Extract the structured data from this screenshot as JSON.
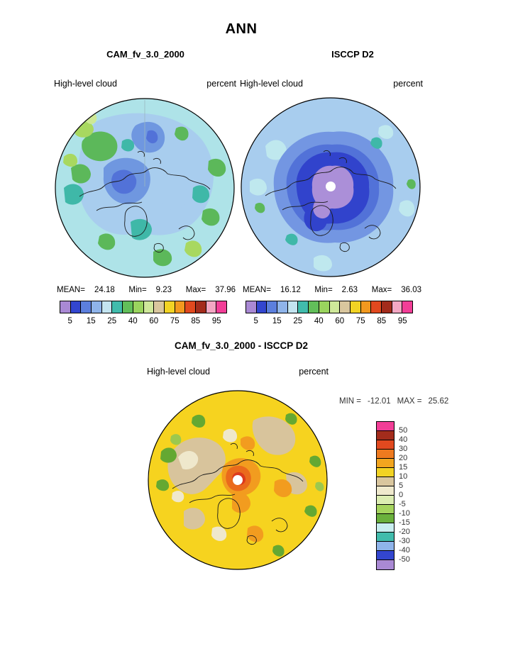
{
  "title": "ANN",
  "top": {
    "left_panel": {
      "title": "CAM_fv_3.0_2000",
      "variable": "High-level cloud",
      "units": "percent",
      "stats": {
        "mean_label": "MEAN=",
        "mean": "24.18",
        "min_label": "Min=",
        "min": "9.23",
        "max_label": "Max=",
        "max": "37.96"
      }
    },
    "right_panel": {
      "title": "ISCCP D2",
      "variable": "High-level cloud",
      "units": "percent",
      "stats": {
        "mean_label": "MEAN=",
        "mean": "16.12",
        "min_label": "Min=",
        "min": "2.63",
        "max_label": "Max=",
        "max": "36.03"
      }
    },
    "colorbar": {
      "ticks": [
        "5",
        "15",
        "25",
        "40",
        "60",
        "75",
        "85",
        "95"
      ],
      "colors": [
        "#a989d4",
        "#3346cf",
        "#5c7fdd",
        "#8fb4ea",
        "#c3e4f0",
        "#41bcac",
        "#62bf5a",
        "#9ad45e",
        "#cfe89a",
        "#d9c69e",
        "#f2d324",
        "#f2991f",
        "#e1491f",
        "#a32c1c",
        "#f3a7c3",
        "#f23e97"
      ]
    }
  },
  "bottom": {
    "title": "CAM_fv_3.0_2000 - ISCCP D2",
    "variable": "High-level cloud",
    "units": "percent",
    "min_label": "MIN =",
    "min": "-12.01",
    "max_label": "MAX =",
    "max": "25.62",
    "colorbar": {
      "labels": [
        "50",
        "40",
        "30",
        "20",
        "15",
        "10",
        "5",
        "0",
        "-5",
        "-10",
        "-15",
        "-20",
        "-30",
        "-40",
        "-50"
      ],
      "colors": [
        "#f23e97",
        "#a32c1c",
        "#e1491f",
        "#ee7a1f",
        "#f2a51f",
        "#f2d324",
        "#d9c69e",
        "#efe9cd",
        "#dcedb2",
        "#a5d45e",
        "#6ab03c",
        "#c9eef0",
        "#41bcac",
        "#8fb4ea",
        "#3346cf",
        "#a989d4"
      ]
    }
  },
  "chart_data": [
    {
      "type": "heatmap",
      "subtype": "polar-stereographic-contour-map",
      "season": "ANN",
      "title": "CAM_fv_3.0_2000",
      "variable": "High-level cloud",
      "units": "percent",
      "stats": {
        "mean": 24.18,
        "min": 9.23,
        "max": 37.96
      },
      "colorbar_ticks": [
        5,
        15,
        25,
        40,
        60,
        75,
        85,
        95
      ],
      "legend_position": "below"
    },
    {
      "type": "heatmap",
      "subtype": "polar-stereographic-contour-map",
      "season": "ANN",
      "title": "ISCCP D2",
      "variable": "High-level cloud",
      "units": "percent",
      "stats": {
        "mean": 16.12,
        "min": 2.63,
        "max": 36.03
      },
      "colorbar_ticks": [
        5,
        15,
        25,
        40,
        60,
        75,
        85,
        95
      ],
      "legend_position": "below"
    },
    {
      "type": "heatmap",
      "subtype": "polar-stereographic-contour-map",
      "season": "ANN",
      "title": "CAM_fv_3.0_2000 - ISCCP D2",
      "variable": "High-level cloud",
      "units": "percent",
      "stats": {
        "min": -12.01,
        "max": 25.62
      },
      "contour_levels": [
        50,
        40,
        30,
        20,
        15,
        10,
        5,
        0,
        -5,
        -10,
        -15,
        -20,
        -30,
        -40,
        -50
      ],
      "legend_position": "right"
    }
  ]
}
